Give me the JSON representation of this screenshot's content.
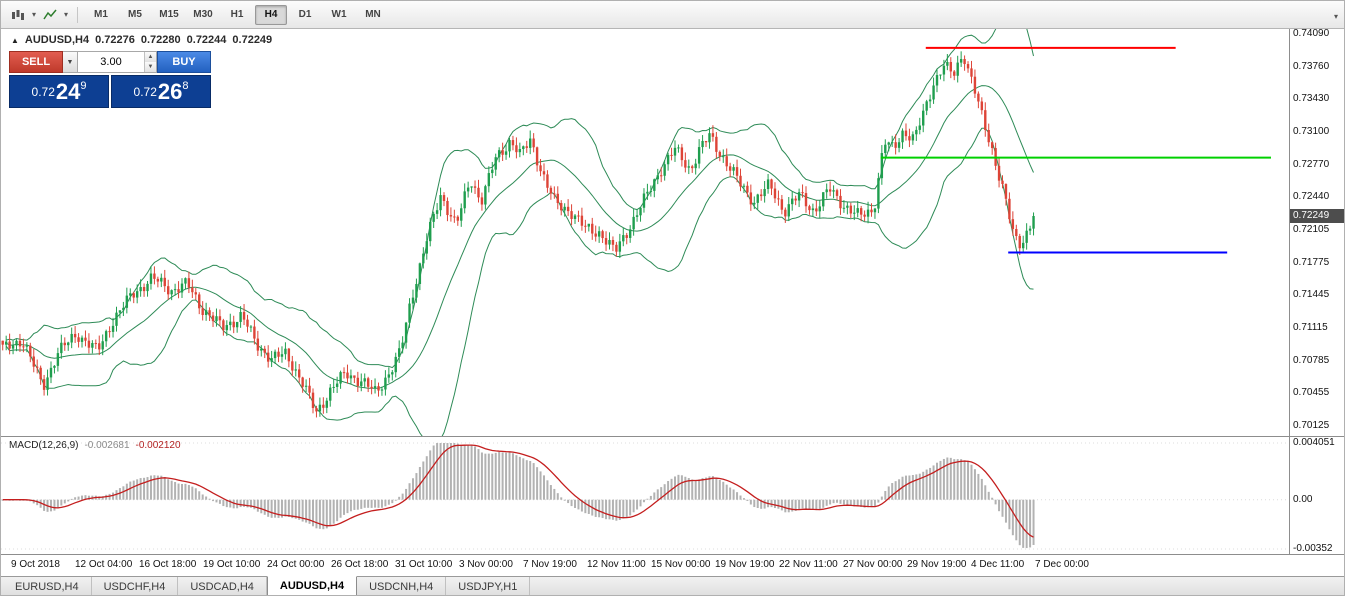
{
  "toolbar": {
    "timeframes": [
      {
        "label": "M1",
        "active": false
      },
      {
        "label": "M5",
        "active": false
      },
      {
        "label": "M15",
        "active": false
      },
      {
        "label": "M30",
        "active": false
      },
      {
        "label": "H1",
        "active": false
      },
      {
        "label": "H4",
        "active": true
      },
      {
        "label": "D1",
        "active": false
      },
      {
        "label": "W1",
        "active": false
      },
      {
        "label": "MN",
        "active": false
      }
    ],
    "icons": [
      "chart-type-icon",
      "chart-type-dropdown-icon",
      "indicators-icon",
      "indicators-dropdown-icon",
      "toolbar-overflow-icon"
    ]
  },
  "quote_header": {
    "marker": "▲",
    "symbol": "AUDUSD,H4",
    "open": "0.72276",
    "high": "0.72280",
    "low": "0.72244",
    "close": "0.72249"
  },
  "trade_panel": {
    "sell_label": "SELL",
    "buy_label": "BUY",
    "volume": "3.00",
    "sell_price": {
      "prefix": "0.72",
      "big": "24",
      "sup": "9"
    },
    "buy_price": {
      "prefix": "0.72",
      "big": "26",
      "sup": "8"
    }
  },
  "chart_data": {
    "type": "candlestick",
    "symbol": "AUDUSD",
    "timeframe": "H4",
    "indicators": [
      "Bollinger Bands",
      "MACD(12,26,9)"
    ],
    "y_axis": {
      "ticks": [
        "0.74090",
        "0.73760",
        "0.73430",
        "0.73100",
        "0.72770",
        "0.72440",
        "0.72105",
        "0.71775",
        "0.71445",
        "0.71115",
        "0.70785",
        "0.70455",
        "0.70125"
      ],
      "top_price": 0.7409,
      "bottom_price": 0.70125
    },
    "x_axis": {
      "labels": [
        "9 Oct 2018",
        "12 Oct 04:00",
        "16 Oct 18:00",
        "19 Oct 10:00",
        "24 Oct 00:00",
        "26 Oct 18:00",
        "31 Oct 10:00",
        "3 Nov 00:00",
        "7 Nov 19:00",
        "12 Nov 11:00",
        "15 Nov 00:00",
        "19 Nov 19:00",
        "22 Nov 11:00",
        "27 Nov 00:00",
        "29 Nov 19:00",
        "4 Dec 11:00",
        "7 Dec 00:00"
      ]
    },
    "last_price": 0.72249,
    "last_price_label": "0.72249",
    "candle_count": 300,
    "plot_fraction": 0.803,
    "noise": 0.0009,
    "close_path": [
      [
        0.0,
        0.709
      ],
      [
        0.019,
        0.71
      ],
      [
        0.039,
        0.7052
      ],
      [
        0.053,
        0.7086
      ],
      [
        0.072,
        0.7106
      ],
      [
        0.092,
        0.7088
      ],
      [
        0.106,
        0.7118
      ],
      [
        0.126,
        0.7146
      ],
      [
        0.145,
        0.7162
      ],
      [
        0.164,
        0.715
      ],
      [
        0.179,
        0.7156
      ],
      [
        0.193,
        0.7132
      ],
      [
        0.213,
        0.7112
      ],
      [
        0.232,
        0.7124
      ],
      [
        0.246,
        0.7096
      ],
      [
        0.261,
        0.708
      ],
      [
        0.275,
        0.7086
      ],
      [
        0.29,
        0.7058
      ],
      [
        0.304,
        0.7026
      ],
      [
        0.319,
        0.705
      ],
      [
        0.333,
        0.7066
      ],
      [
        0.348,
        0.7058
      ],
      [
        0.362,
        0.7046
      ],
      [
        0.377,
        0.707
      ],
      [
        0.386,
        0.7088
      ],
      [
        0.396,
        0.714
      ],
      [
        0.411,
        0.72
      ],
      [
        0.425,
        0.7246
      ],
      [
        0.44,
        0.7216
      ],
      [
        0.454,
        0.7262
      ],
      [
        0.464,
        0.724
      ],
      [
        0.478,
        0.7282
      ],
      [
        0.493,
        0.7302
      ],
      [
        0.502,
        0.7286
      ],
      [
        0.512,
        0.7302
      ],
      [
        0.527,
        0.7258
      ],
      [
        0.536,
        0.7238
      ],
      [
        0.551,
        0.723
      ],
      [
        0.565,
        0.7212
      ],
      [
        0.58,
        0.7208
      ],
      [
        0.594,
        0.7188
      ],
      [
        0.609,
        0.7216
      ],
      [
        0.623,
        0.7242
      ],
      [
        0.638,
        0.7272
      ],
      [
        0.652,
        0.7292
      ],
      [
        0.667,
        0.7272
      ],
      [
        0.676,
        0.7292
      ],
      [
        0.686,
        0.7306
      ],
      [
        0.7,
        0.7282
      ],
      [
        0.715,
        0.7258
      ],
      [
        0.729,
        0.724
      ],
      [
        0.744,
        0.7256
      ],
      [
        0.758,
        0.723
      ],
      [
        0.773,
        0.7246
      ],
      [
        0.787,
        0.723
      ],
      [
        0.802,
        0.7252
      ],
      [
        0.816,
        0.7236
      ],
      [
        0.831,
        0.7224
      ],
      [
        0.845,
        0.7232
      ],
      [
        0.855,
        0.73
      ],
      [
        0.864,
        0.7292
      ],
      [
        0.874,
        0.7312
      ],
      [
        0.884,
        0.7302
      ],
      [
        0.894,
        0.733
      ],
      [
        0.903,
        0.736
      ],
      [
        0.913,
        0.7378
      ],
      [
        0.922,
        0.7366
      ],
      [
        0.932,
        0.739
      ],
      [
        0.942,
        0.7356
      ],
      [
        0.951,
        0.732
      ],
      [
        0.961,
        0.7288
      ],
      [
        0.971,
        0.725
      ],
      [
        0.981,
        0.7202
      ],
      [
        0.988,
        0.7196
      ],
      [
        1.0,
        0.7225
      ]
    ],
    "hlines": [
      {
        "name": "resistance-line",
        "price": 0.7395,
        "x1": 0.718,
        "x2": 0.912,
        "color": "#ff0000",
        "width": 2
      },
      {
        "name": "mid-level-line",
        "price": 0.7284,
        "x1": 0.683,
        "x2": 0.986,
        "color": "#00d000",
        "width": 2
      },
      {
        "name": "support-line",
        "price": 0.7188,
        "x1": 0.782,
        "x2": 0.952,
        "color": "#0000ff",
        "width": 2
      }
    ],
    "macd_panel": {
      "label": "MACD(12,26,9)",
      "value_main": "-0.002681",
      "value_signal": "-0.002120",
      "ticks": [
        "0.004051",
        "0.00",
        "-0.00352"
      ],
      "scale_top": 0.004051,
      "scale_bottom": -0.00352
    }
  },
  "tabs": {
    "items": [
      {
        "label": "EURUSD,H4",
        "active": false
      },
      {
        "label": "USDCHF,H4",
        "active": false
      },
      {
        "label": "USDCAD,H4",
        "active": false
      },
      {
        "label": "AUDUSD,H4",
        "active": true
      },
      {
        "label": "USDCNH,H4",
        "active": false
      },
      {
        "label": "USDJPY,H1",
        "active": false
      }
    ]
  },
  "colors": {
    "candle_up": "#1f9e4e",
    "candle_down": "#dd4437",
    "bollinger": "#2e8b57",
    "macd_hist": "#b2b2b2",
    "macd_signal": "#c41e1e",
    "badge_bg": "#4d4d4d"
  }
}
